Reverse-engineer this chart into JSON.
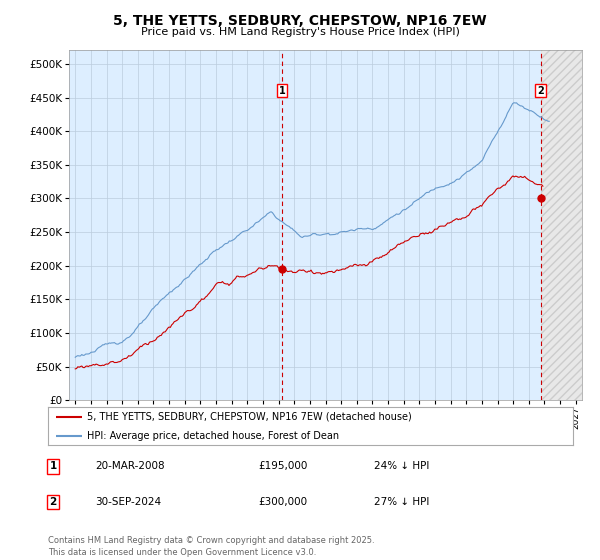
{
  "title": "5, THE YETTS, SEDBURY, CHEPSTOW, NP16 7EW",
  "subtitle": "Price paid vs. HM Land Registry's House Price Index (HPI)",
  "title_fontsize": 10,
  "subtitle_fontsize": 8,
  "background_color": "#ffffff",
  "plot_bg_color": "#ddeeff",
  "hpi_color": "#6699cc",
  "price_color": "#cc0000",
  "ylim": [
    0,
    520000
  ],
  "yticks": [
    0,
    50000,
    100000,
    150000,
    200000,
    250000,
    300000,
    350000,
    400000,
    450000,
    500000
  ],
  "xlim_start": 1994.6,
  "xlim_end": 2027.4,
  "xticks": [
    1995,
    1996,
    1997,
    1998,
    1999,
    2000,
    2001,
    2002,
    2003,
    2004,
    2005,
    2006,
    2007,
    2008,
    2009,
    2010,
    2011,
    2012,
    2013,
    2014,
    2015,
    2016,
    2017,
    2018,
    2019,
    2020,
    2021,
    2022,
    2023,
    2024,
    2025,
    2026,
    2027
  ],
  "marker1_x": 2008.22,
  "marker1_y": 195000,
  "marker2_x": 2024.75,
  "marker2_y": 300000,
  "legend_line1": "5, THE YETTS, SEDBURY, CHEPSTOW, NP16 7EW (detached house)",
  "legend_line2": "HPI: Average price, detached house, Forest of Dean",
  "marker1_date": "20-MAR-2008",
  "marker1_price": "£195,000",
  "marker1_hpi": "24% ↓ HPI",
  "marker2_date": "30-SEP-2024",
  "marker2_price": "£300,000",
  "marker2_hpi": "27% ↓ HPI",
  "footer": "Contains HM Land Registry data © Crown copyright and database right 2025.\nThis data is licensed under the Open Government Licence v3.0.",
  "grid_color": "#bbccdd"
}
